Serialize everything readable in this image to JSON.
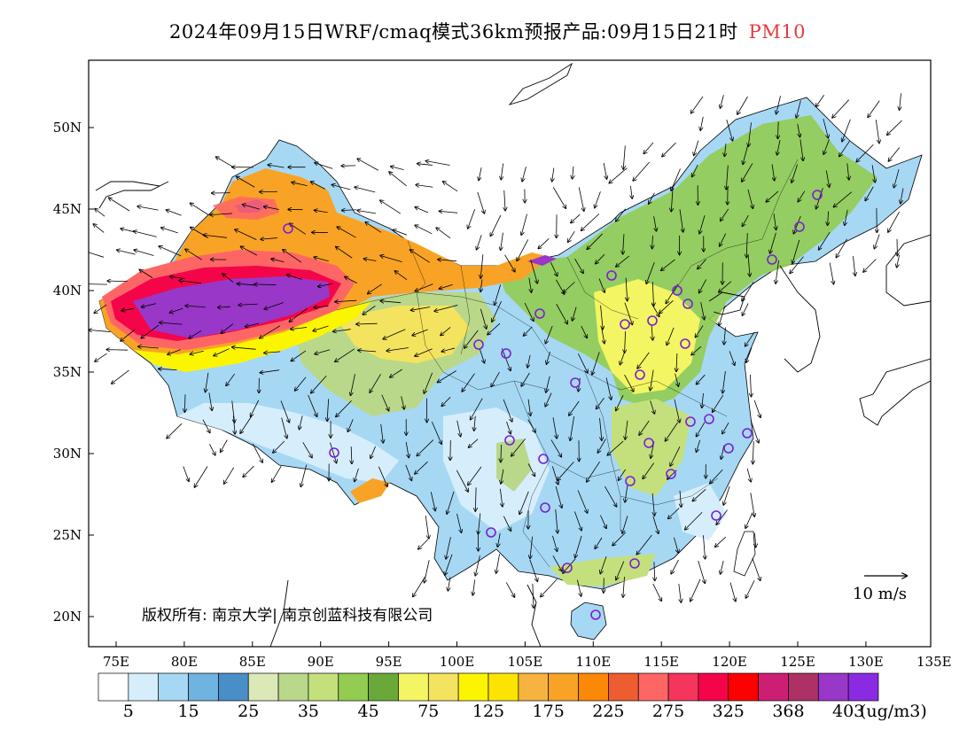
{
  "title": {
    "main": "2024年09月15日WRF/cmaq模式36km预报产品:09月15日21时",
    "pollutant": "PM10",
    "pollutant_color": "#e8383d"
  },
  "map": {
    "lon_ticks": [
      "75E",
      "80E",
      "85E",
      "90E",
      "95E",
      "100E",
      "105E",
      "110E",
      "115E",
      "120E",
      "125E",
      "130E",
      "135E"
    ],
    "lat_ticks": [
      "50N",
      "45N",
      "40N",
      "35N",
      "30N",
      "25N",
      "20N"
    ],
    "lon_range": [
      73,
      135
    ],
    "lat_range": [
      18,
      54
    ],
    "wind_reference": "10 m/s",
    "copyright": "版权所有: 南京大学| 南京创蓝科技有限公司"
  },
  "colorbar": {
    "colors": [
      "#ffffff",
      "#d6eefb",
      "#a6d8f4",
      "#6fb3e0",
      "#4a8ec8",
      "#dbe9b8",
      "#b9d88a",
      "#c3e07d",
      "#92cc51",
      "#6aa83a",
      "#f3f562",
      "#f4e35e",
      "#fcf500",
      "#fde400",
      "#f7b33f",
      "#f8a325",
      "#fb8806",
      "#ee5d2f",
      "#fe6666",
      "#f5355b",
      "#f4054a",
      "#fe0000",
      "#cc1f74",
      "#ad3165",
      "#9937c8",
      "#8a2be2"
    ],
    "labels": [
      "5",
      "15",
      "25",
      "35",
      "45",
      "75",
      "125",
      "175",
      "225",
      "275",
      "325",
      "368",
      "403"
    ],
    "unit": "(ug/m3)"
  }
}
